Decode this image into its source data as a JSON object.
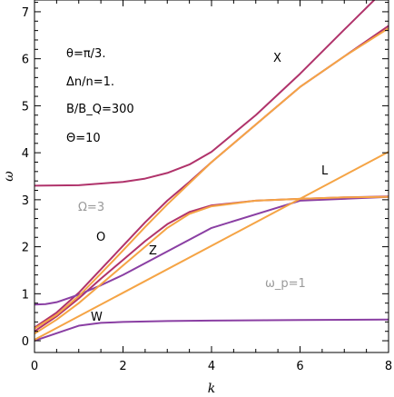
{
  "chart_data": {
    "type": "line",
    "xlabel": "k",
    "ylabel": "ω",
    "xlim": [
      0,
      8
    ],
    "ylim": [
      -0.25,
      7.25
    ],
    "xticks": [
      "0",
      "2",
      "4",
      "6",
      "8"
    ],
    "yticks": [
      "0",
      "1",
      "2",
      "3",
      "4",
      "5",
      "6",
      "7"
    ],
    "grid": false,
    "annotations": [
      "θ=π/3.",
      "Δn/n=1.",
      "B/B_Q=300",
      "Θ=10"
    ],
    "mode_labels": [
      "X",
      "L",
      "O",
      "Z",
      "W"
    ],
    "reference_labels": [
      "Ω=3",
      "ω_p=1"
    ],
    "series": [
      {
        "style": "exact",
        "color": "#b0336b",
        "x": [
          0,
          1,
          2,
          2.5,
          3,
          3.5,
          4,
          5,
          6,
          7,
          8
        ],
        "y": [
          3.3,
          3.31,
          3.38,
          3.45,
          3.57,
          3.75,
          4.02,
          4.8,
          5.68,
          6.62,
          7.55
        ]
      },
      {
        "style": "exact",
        "color": "#b0336b",
        "x": [
          0,
          0.5,
          1,
          1.5,
          2,
          2.5,
          3,
          3.5,
          4,
          5,
          6,
          7,
          8
        ],
        "y": [
          0.28,
          0.6,
          1.02,
          1.52,
          2.02,
          2.52,
          2.98,
          3.38,
          3.8,
          4.6,
          5.4,
          6.05,
          6.7
        ]
      },
      {
        "style": "exact",
        "color": "#b0336b",
        "x": [
          0,
          0.5,
          1,
          1.5,
          2,
          2.5,
          3,
          3.5,
          4,
          5,
          6,
          7,
          8
        ],
        "y": [
          0.2,
          0.52,
          0.9,
          1.32,
          1.72,
          2.12,
          2.48,
          2.74,
          2.88,
          2.98,
          3.02,
          3.05,
          3.07
        ]
      },
      {
        "style": "exact",
        "color": "#8a3fa3",
        "x": [
          0,
          0.25,
          0.5,
          1,
          1.5,
          2,
          4,
          6,
          8
        ],
        "y": [
          0.77,
          0.78,
          0.82,
          0.98,
          1.18,
          1.4,
          2.4,
          2.98,
          3.06
        ]
      },
      {
        "style": "exact",
        "color": "#8a3fa3",
        "x": [
          0,
          0.5,
          1,
          1.5,
          2,
          3,
          4,
          6,
          8
        ],
        "y": [
          0.0,
          0.16,
          0.32,
          0.38,
          0.4,
          0.42,
          0.43,
          0.44,
          0.45
        ]
      },
      {
        "style": "approx",
        "color": "#f5a445",
        "x": [
          0,
          0.5,
          1,
          1.5,
          2,
          2.5,
          3,
          3.5,
          4,
          5,
          6,
          7,
          8
        ],
        "y": [
          0.26,
          0.55,
          0.95,
          1.43,
          1.92,
          2.42,
          2.9,
          3.35,
          3.8,
          4.6,
          5.4,
          6.05,
          6.65
        ]
      },
      {
        "style": "approx",
        "color": "#f5a445",
        "x": [
          0,
          0.5,
          1,
          1.5,
          2,
          2.5,
          3,
          3.5,
          4,
          5,
          6,
          7,
          8
        ],
        "y": [
          0.15,
          0.45,
          0.8,
          1.2,
          1.6,
          2.0,
          2.4,
          2.7,
          2.86,
          2.98,
          3.02,
          3.05,
          3.06
        ]
      },
      {
        "style": "approx",
        "color": "#f5a445",
        "x": [
          0,
          8
        ],
        "y": [
          0.02,
          4.02
        ]
      }
    ]
  }
}
